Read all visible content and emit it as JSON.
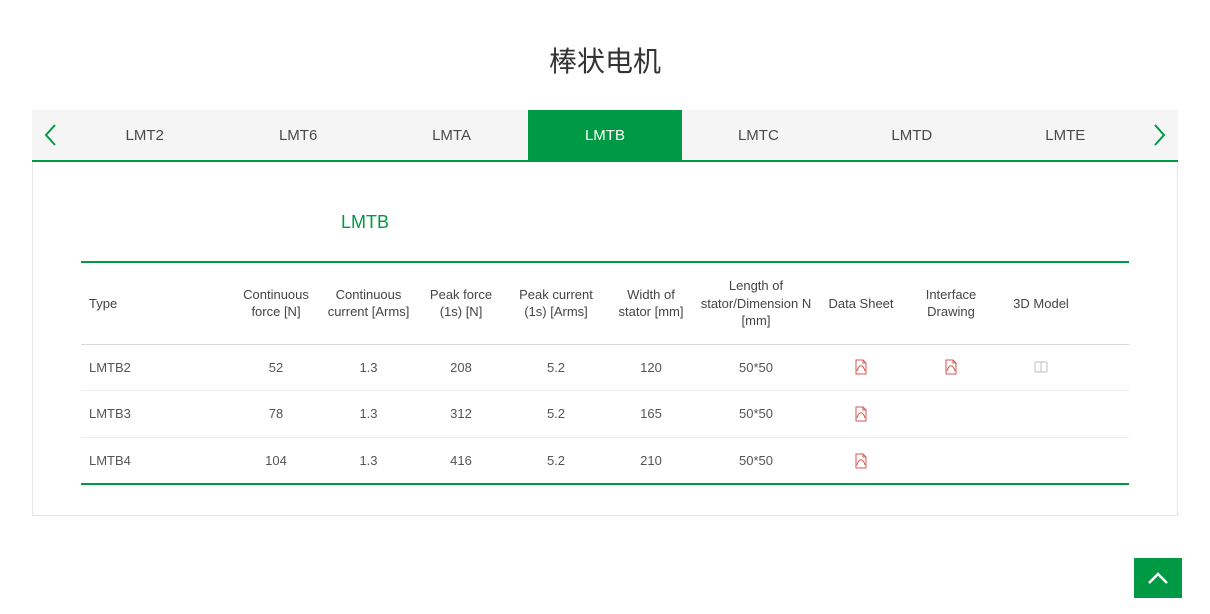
{
  "page": {
    "title": "棒状电机"
  },
  "tabs": {
    "items": [
      "LMT2",
      "LMT6",
      "LMTA",
      "LMTB",
      "LMTC",
      "LMTD",
      "LMTE"
    ],
    "active_index": 3
  },
  "table": {
    "title": "LMTB",
    "columns": [
      "Type",
      "Continuous force [N]",
      "Continuous current [Arms]",
      "Peak force (1s) [N]",
      "Peak current (1s) [Arms]",
      "Width of stator [mm]",
      "Length of stator/Dimension N [mm]",
      "Data Sheet",
      "Interface Drawing",
      "3D Model"
    ],
    "rows": [
      {
        "type": "LMTB2",
        "cf": "52",
        "cc": "1.3",
        "pf": "208",
        "pc": "5.2",
        "ws": "120",
        "ld": "50*50",
        "ds": true,
        "id": true,
        "model": true
      },
      {
        "type": "LMTB3",
        "cf": "78",
        "cc": "1.3",
        "pf": "312",
        "pc": "5.2",
        "ws": "165",
        "ld": "50*50",
        "ds": true,
        "id": false,
        "model": false
      },
      {
        "type": "LMTB4",
        "cf": "104",
        "cc": "1.3",
        "pf": "416",
        "pc": "5.2",
        "ws": "210",
        "ld": "50*50",
        "ds": true,
        "id": false,
        "model": false
      }
    ]
  },
  "colors": {
    "accent": "#009a44",
    "pdf_icon": "#d9534f",
    "zip_icon": "#bfbfbf",
    "tab_bg": "#f5f5f5",
    "border": "#e6e6e6"
  }
}
